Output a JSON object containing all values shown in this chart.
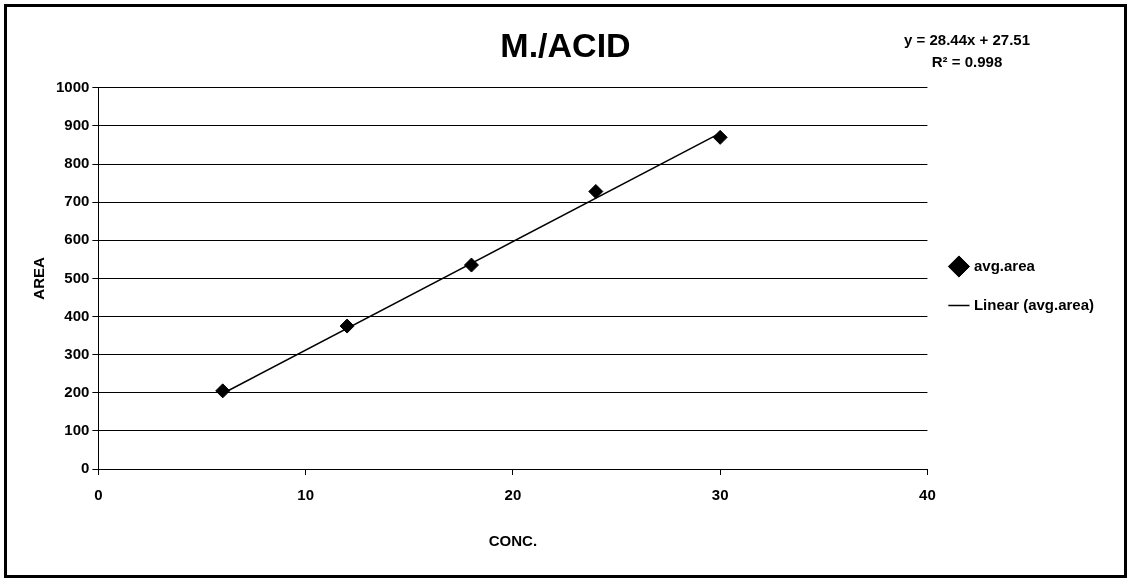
{
  "chart_data": {
    "type": "scatter",
    "title": "M./ACID",
    "xlabel": "CONC.",
    "ylabel": "AREA",
    "annotations": [
      "y = 28.44x + 27.51",
      "R² = 0.998"
    ],
    "x": [
      6,
      12,
      18,
      24,
      30
    ],
    "series": [
      {
        "name": "avg.area",
        "color": "#000000",
        "values": [
          205,
          375,
          535,
          728,
          870
        ],
        "marker": "diamond"
      },
      {
        "name": "Linear (avg.area)",
        "type": "line",
        "color": "#000000",
        "x": [
          6,
          30
        ],
        "values": [
          198,
          881
        ],
        "marker": "none"
      }
    ],
    "xlim": [
      0,
      40
    ],
    "xticks": [
      0,
      10,
      20,
      30,
      40
    ],
    "ylim": [
      0,
      1000
    ],
    "yticks": [
      0,
      100,
      200,
      300,
      400,
      500,
      600,
      700,
      800,
      900,
      1000
    ],
    "grid": "y",
    "legend": "right"
  }
}
